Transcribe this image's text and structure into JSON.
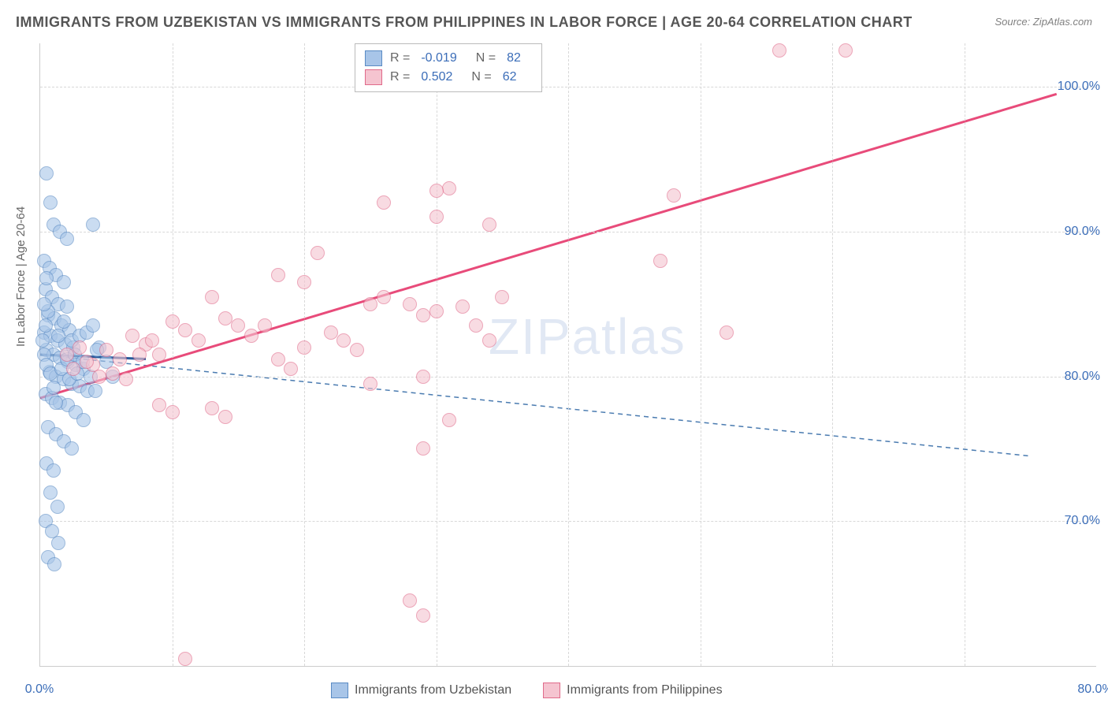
{
  "title": "IMMIGRANTS FROM UZBEKISTAN VS IMMIGRANTS FROM PHILIPPINES IN LABOR FORCE | AGE 20-64 CORRELATION CHART",
  "source": "Source: ZipAtlas.com",
  "ylabel": "In Labor Force | Age 20-64",
  "watermark_a": "ZIP",
  "watermark_b": "atlas",
  "chart": {
    "type": "scatter",
    "xlim": [
      0,
      80
    ],
    "ylim": [
      60,
      103
    ],
    "xtick_labels": [
      "0.0%",
      "80.0%"
    ],
    "xtick_positions": [
      0,
      80
    ],
    "xtick_minor": [
      10,
      20,
      30,
      40,
      50,
      60,
      70
    ],
    "ytick_labels": [
      "70.0%",
      "80.0%",
      "90.0%",
      "100.0%"
    ],
    "ytick_positions": [
      70,
      80,
      90,
      100
    ],
    "grid_color": "#d8d8d8",
    "background_color": "#ffffff",
    "axis_label_color": "#3b6db8",
    "series": [
      {
        "name": "Immigrants from Uzbekistan",
        "fill": "#a8c5e8",
        "stroke": "#5a8bc4",
        "r_value": "-0.019",
        "n_value": "82",
        "trend": {
          "x1": 0,
          "y1": 81.5,
          "x2": 75,
          "y2": 74.5,
          "dash": true,
          "color": "#4a7bb0",
          "width": 1.5
        },
        "trend_solid": {
          "x1": 0,
          "y1": 81.5,
          "x2": 8,
          "y2": 81.2,
          "color": "#2a5a9a",
          "width": 3
        },
        "points": [
          [
            0.5,
            94
          ],
          [
            0.8,
            92
          ],
          [
            1,
            90.5
          ],
          [
            1.5,
            90
          ],
          [
            2,
            89.5
          ],
          [
            0.3,
            88
          ],
          [
            0.7,
            87.5
          ],
          [
            1.2,
            87
          ],
          [
            1.8,
            86.5
          ],
          [
            0.4,
            86
          ],
          [
            0.9,
            85.5
          ],
          [
            1.4,
            85
          ],
          [
            2,
            84.8
          ],
          [
            0.6,
            84.2
          ],
          [
            1.1,
            84
          ],
          [
            1.6,
            83.5
          ],
          [
            2.2,
            83.2
          ],
          [
            0.3,
            83
          ],
          [
            0.8,
            82.8
          ],
          [
            1.3,
            82.5
          ],
          [
            1.9,
            82.2
          ],
          [
            2.5,
            82
          ],
          [
            0.5,
            81.8
          ],
          [
            1,
            81.5
          ],
          [
            1.5,
            81.3
          ],
          [
            2.1,
            81
          ],
          [
            2.7,
            80.8
          ],
          [
            3.3,
            80.5
          ],
          [
            0.7,
            80.3
          ],
          [
            1.2,
            80
          ],
          [
            1.8,
            79.8
          ],
          [
            2.4,
            79.5
          ],
          [
            3,
            79.3
          ],
          [
            3.6,
            79
          ],
          [
            0.4,
            78.8
          ],
          [
            0.9,
            78.5
          ],
          [
            1.5,
            78.2
          ],
          [
            2.1,
            78
          ],
          [
            2.7,
            77.5
          ],
          [
            3.3,
            77
          ],
          [
            0.6,
            76.5
          ],
          [
            1.2,
            76
          ],
          [
            1.8,
            75.5
          ],
          [
            2.4,
            75
          ],
          [
            0.5,
            74
          ],
          [
            1,
            73.5
          ],
          [
            0.8,
            72
          ],
          [
            1.3,
            71
          ],
          [
            0.4,
            70
          ],
          [
            0.9,
            69.3
          ],
          [
            1.4,
            68.5
          ],
          [
            0.6,
            67.5
          ],
          [
            1.1,
            67
          ],
          [
            4,
            90.5
          ],
          [
            4.5,
            82
          ],
          [
            5,
            81
          ],
          [
            5.5,
            80
          ],
          [
            4.2,
            79
          ],
          [
            0.3,
            81.5
          ],
          [
            0.5,
            80.8
          ],
          [
            0.2,
            82.5
          ],
          [
            0.4,
            83.5
          ],
          [
            0.6,
            84.5
          ],
          [
            0.8,
            80.2
          ],
          [
            1,
            79.2
          ],
          [
            1.2,
            78.2
          ],
          [
            1.4,
            82.8
          ],
          [
            1.6,
            80.5
          ],
          [
            1.8,
            83.8
          ],
          [
            2,
            81.2
          ],
          [
            2.2,
            79.8
          ],
          [
            2.4,
            82.5
          ],
          [
            2.6,
            81.5
          ],
          [
            2.8,
            80.2
          ],
          [
            3,
            82.8
          ],
          [
            3.2,
            81
          ],
          [
            3.5,
            83
          ],
          [
            3.8,
            80
          ],
          [
            4,
            83.5
          ],
          [
            4.3,
            81.8
          ],
          [
            0.3,
            85
          ],
          [
            0.5,
            86.8
          ]
        ]
      },
      {
        "name": "Immigrants from Philippines",
        "fill": "#f5c4d0",
        "stroke": "#e06a8a",
        "r_value": "0.502",
        "n_value": "62",
        "trend": {
          "x1": 0,
          "y1": 78.5,
          "x2": 77,
          "y2": 99.5,
          "dash": false,
          "color": "#e84b7a",
          "width": 3
        },
        "points": [
          [
            56,
            102.5
          ],
          [
            61,
            102.5
          ],
          [
            48,
            92.5
          ],
          [
            31,
            93
          ],
          [
            30,
            92.8
          ],
          [
            26,
            92
          ],
          [
            30,
            91
          ],
          [
            47,
            88
          ],
          [
            34,
            90.5
          ],
          [
            21,
            88.5
          ],
          [
            20,
            86.5
          ],
          [
            18,
            87
          ],
          [
            25,
            85
          ],
          [
            26,
            85.5
          ],
          [
            28,
            85
          ],
          [
            29,
            84.2
          ],
          [
            30,
            84.5
          ],
          [
            32,
            84.8
          ],
          [
            33,
            83.5
          ],
          [
            13,
            85.5
          ],
          [
            14,
            84
          ],
          [
            15,
            83.5
          ],
          [
            10,
            83.8
          ],
          [
            11,
            83.2
          ],
          [
            12,
            82.5
          ],
          [
            7,
            82.8
          ],
          [
            8,
            82.2
          ],
          [
            9,
            81.5
          ],
          [
            22,
            83
          ],
          [
            23,
            82.5
          ],
          [
            24,
            81.8
          ],
          [
            20,
            82
          ],
          [
            18,
            81.2
          ],
          [
            19,
            80.5
          ],
          [
            29,
            80
          ],
          [
            25,
            79.5
          ],
          [
            9,
            78
          ],
          [
            10,
            77.5
          ],
          [
            13,
            77.8
          ],
          [
            14,
            77.2
          ],
          [
            31,
            77
          ],
          [
            29,
            75
          ],
          [
            5,
            81.8
          ],
          [
            6,
            81.2
          ],
          [
            4,
            80.8
          ],
          [
            5.5,
            80.2
          ],
          [
            6.5,
            79.8
          ],
          [
            7.5,
            81.5
          ],
          [
            8.5,
            82.5
          ],
          [
            3,
            82
          ],
          [
            3.5,
            81
          ],
          [
            4.5,
            80
          ],
          [
            2,
            81.5
          ],
          [
            2.5,
            80.5
          ],
          [
            28,
            64.5
          ],
          [
            29,
            63.5
          ],
          [
            11,
            60.5
          ],
          [
            16,
            82.8
          ],
          [
            17,
            83.5
          ],
          [
            52,
            83
          ],
          [
            34,
            82.5
          ],
          [
            35,
            85.5
          ]
        ]
      }
    ]
  },
  "legend_bottom": [
    "Immigrants from Uzbekistan",
    "Immigrants from Philippines"
  ]
}
